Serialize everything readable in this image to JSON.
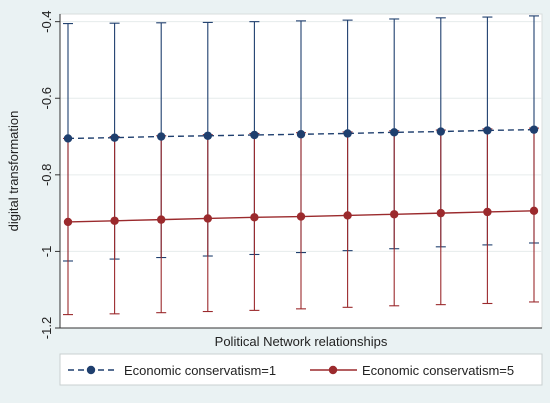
{
  "chart_data": {
    "type": "line",
    "title": "",
    "xlabel": "Political Network relationships",
    "ylabel": "digital transformation",
    "x": [
      0,
      1,
      2,
      3,
      4,
      5,
      6,
      7,
      8,
      9,
      10
    ],
    "ylim": [
      -1.2,
      -0.38
    ],
    "yticks": [
      -1.2,
      -1,
      -0.8,
      -0.6,
      -0.4
    ],
    "ytick_labels": [
      "-1.2",
      "-1",
      "-0.8",
      "-0.6",
      "-0.4"
    ],
    "grid": "horizontal",
    "legend_position": "bottom",
    "series": [
      {
        "name": "Economic conservatism=1",
        "color": "#1f3f6e",
        "line_style": "dashed",
        "values": [
          -0.705,
          -0.703,
          -0.7,
          -0.698,
          -0.696,
          -0.694,
          -0.692,
          -0.689,
          -0.687,
          -0.684,
          -0.682
        ],
        "upper": [
          -0.405,
          -0.404,
          -0.403,
          -0.402,
          -0.4,
          -0.398,
          -0.396,
          -0.393,
          -0.39,
          -0.388,
          -0.385
        ],
        "lower": [
          -1.025,
          -1.02,
          -1.016,
          -1.012,
          -1.008,
          -1.003,
          -0.998,
          -0.993,
          -0.988,
          -0.983,
          -0.978
        ]
      },
      {
        "name": "Economic conservatism=5",
        "color": "#9b2a2d",
        "line_style": "solid",
        "values": [
          -0.923,
          -0.92,
          -0.917,
          -0.914,
          -0.911,
          -0.909,
          -0.906,
          -0.903,
          -0.9,
          -0.897,
          -0.894
        ],
        "upper": [
          -0.705,
          -0.7,
          -0.698,
          -0.695,
          -0.692,
          -0.69,
          -0.688,
          -0.685,
          -0.683,
          -0.68,
          -0.678
        ],
        "lower": [
          -1.165,
          -1.163,
          -1.16,
          -1.157,
          -1.154,
          -1.15,
          -1.146,
          -1.142,
          -1.139,
          -1.136,
          -1.132
        ]
      }
    ]
  }
}
